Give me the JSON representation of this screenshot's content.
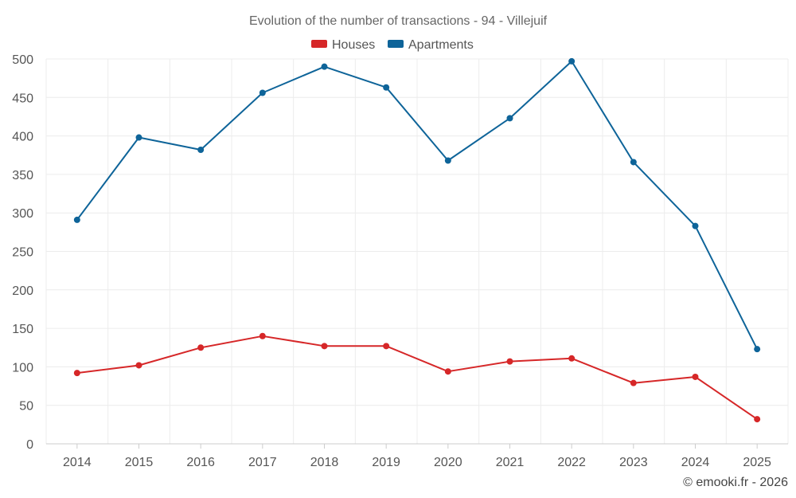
{
  "chart_data": {
    "type": "line",
    "title": "Evolution of the number of transactions - 94 - Villejuif",
    "categories": [
      "2014",
      "2015",
      "2016",
      "2017",
      "2018",
      "2019",
      "2020",
      "2021",
      "2022",
      "2023",
      "2024",
      "2025"
    ],
    "series": [
      {
        "name": "Houses",
        "color": "#d62728",
        "values": [
          92,
          102,
          125,
          140,
          127,
          127,
          94,
          107,
          111,
          79,
          87,
          32
        ]
      },
      {
        "name": "Apartments",
        "color": "#0e6499",
        "values": [
          291,
          398,
          382,
          456,
          490,
          463,
          368,
          423,
          497,
          366,
          283,
          123
        ]
      }
    ],
    "ylim": [
      0,
      500
    ],
    "yticks": [
      "0",
      "50",
      "100",
      "150",
      "200",
      "250",
      "300",
      "350",
      "400",
      "450",
      "500"
    ],
    "xlabel": "",
    "ylabel": "",
    "grid": true,
    "legend": "top-center"
  },
  "credit": "© emooki.fr - 2026"
}
